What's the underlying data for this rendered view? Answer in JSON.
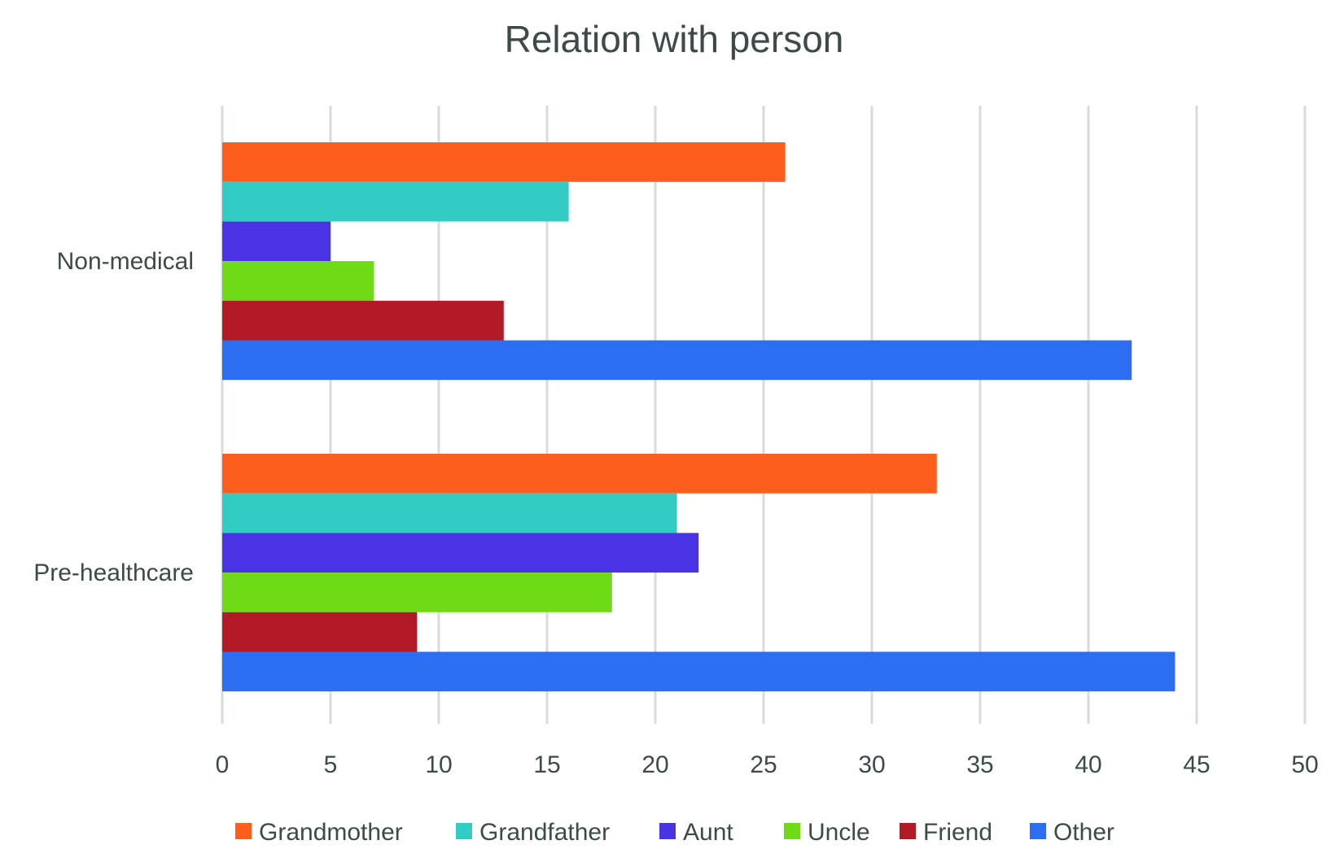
{
  "chart_data": {
    "type": "bar",
    "orientation": "horizontal",
    "title": "Relation with person",
    "xlabel": "",
    "ylabel": "",
    "xlim": [
      0,
      50
    ],
    "xticks": [
      0,
      5,
      10,
      15,
      20,
      25,
      30,
      35,
      40,
      45,
      50
    ],
    "grid": true,
    "legend_position": "bottom",
    "categories": [
      "Non-medical",
      "Pre-healthcare"
    ],
    "series": [
      {
        "name": "Grandmother",
        "color": "#fd5e1e",
        "values": [
          26,
          33
        ]
      },
      {
        "name": "Grandfather",
        "color": "#33ccc4",
        "values": [
          16,
          21
        ]
      },
      {
        "name": "Aunt",
        "color": "#4a33e4",
        "values": [
          5,
          22
        ]
      },
      {
        "name": "Uncle",
        "color": "#6edb16",
        "values": [
          7,
          18
        ]
      },
      {
        "name": "Friend",
        "color": "#b21a28",
        "values": [
          13,
          9
        ]
      },
      {
        "name": "Other",
        "color": "#2b6ef2",
        "values": [
          42,
          44
        ]
      }
    ]
  }
}
